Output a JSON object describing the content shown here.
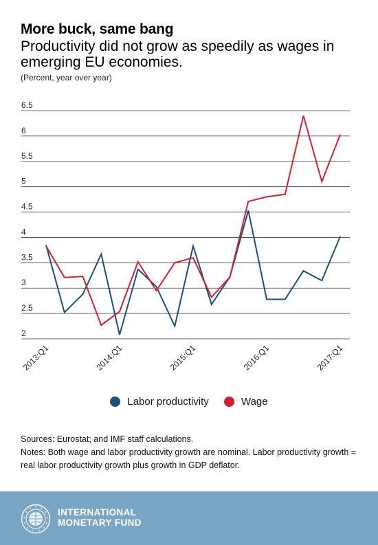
{
  "title": "More buck, same bang",
  "subtitle": "Productivity did not grow as speedily as wages in emerging EU economies.",
  "unit_note": "(Percent, year over year)",
  "chart_data": {
    "type": "line",
    "title": "More buck, same bang",
    "subtitle": "Productivity did not grow as speedily as wages in emerging EU economies.",
    "ylabel": "(Percent, year over year)",
    "ylim": [
      2,
      6.5
    ],
    "y_ticks": [
      "6.5",
      "6",
      "5.5",
      "5",
      "4.5",
      "4",
      "3.5",
      "3",
      "2.5",
      "2"
    ],
    "x_tick_labels": [
      "2013:Q1",
      "2014:Q1",
      "2015:Q1",
      "2016:Q1",
      "2017:Q1"
    ],
    "x": [
      "2013:Q1",
      "2013:Q2",
      "2013:Q3",
      "2013:Q4",
      "2014:Q1",
      "2014:Q2",
      "2014:Q3",
      "2014:Q4",
      "2015:Q1",
      "2015:Q2",
      "2015:Q3",
      "2015:Q4",
      "2016:Q1",
      "2016:Q2",
      "2016:Q3",
      "2016:Q4",
      "2017:Q1"
    ],
    "grid": true,
    "legend_position": "bottom",
    "series": [
      {
        "name": "Labor productivity",
        "color": "#1a4f7a",
        "values": [
          3.85,
          2.52,
          2.88,
          3.67,
          2.08,
          3.37,
          3.03,
          2.25,
          3.83,
          2.68,
          3.22,
          4.53,
          2.78,
          2.78,
          3.34,
          3.15,
          4.02
        ]
      },
      {
        "name": "Wage",
        "color": "#d6202f",
        "values": [
          3.83,
          3.21,
          3.23,
          2.27,
          2.54,
          3.52,
          2.95,
          3.5,
          3.6,
          2.82,
          3.22,
          4.71,
          4.8,
          4.85,
          6.4,
          5.1,
          6.03
        ]
      }
    ]
  },
  "legend": {
    "items": [
      {
        "label": "Labor productivity",
        "color": "#1a4f7a"
      },
      {
        "label": "Wage",
        "color": "#d6202f"
      }
    ]
  },
  "sources": "Sources: Eurostat; and IMF staff calculations.",
  "notes": "Notes: Both wage and labor productivity growth are nominal. Labor productivity growth = real labor productivity growth plus growth in GDP deflator.",
  "footer": {
    "line1": "INTERNATIONAL",
    "line2": "MONETARY FUND",
    "background": "#7aa6c6"
  }
}
